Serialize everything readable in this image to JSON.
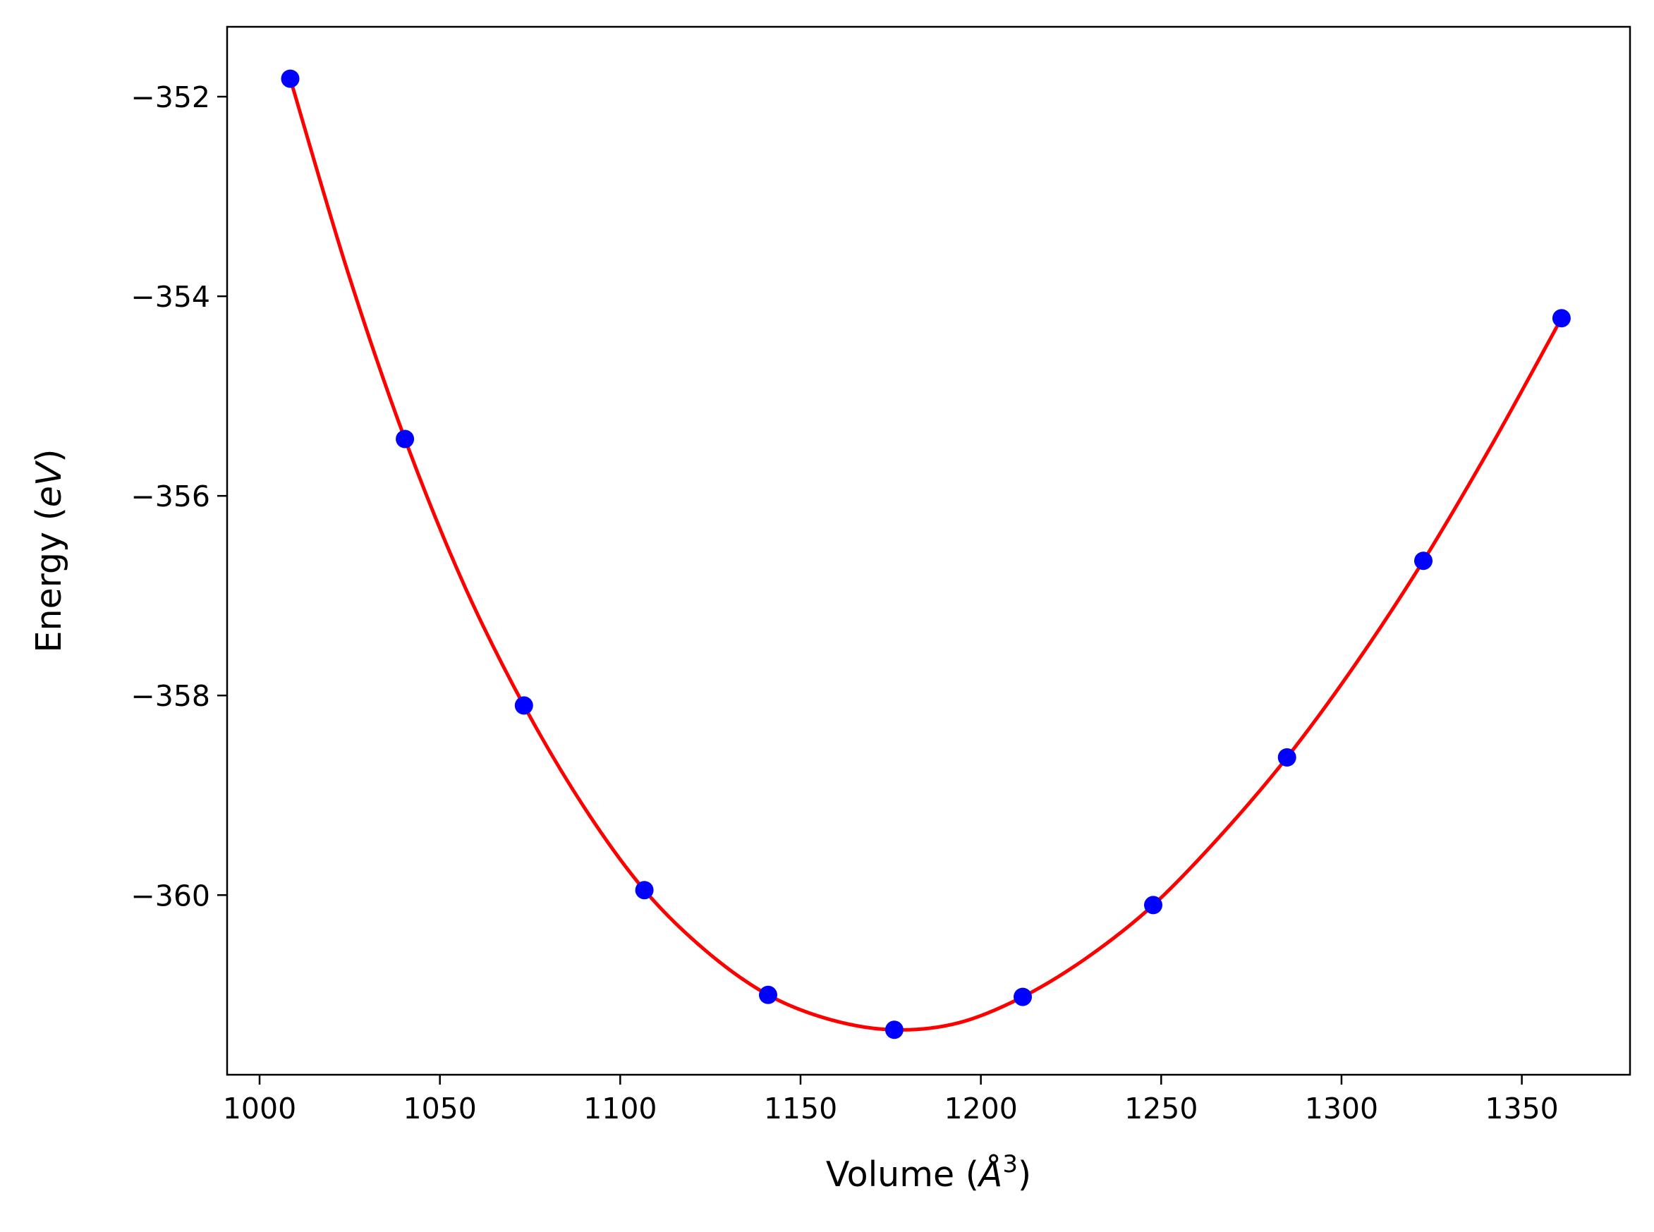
{
  "chart_data": {
    "type": "scatter",
    "title": "",
    "xlabel": {
      "prefix": "Volume (",
      "symbol": "Å",
      "sup": "3",
      "suffix": ")"
    },
    "ylabel": {
      "prefix": "Energy (",
      "italic": "eV",
      "suffix": ")"
    },
    "xlim": [
      991,
      1380
    ],
    "ylim": [
      -361.8,
      -351.3
    ],
    "xticks": [
      {
        "value": 1000,
        "label": "1000"
      },
      {
        "value": 1050,
        "label": "1050"
      },
      {
        "value": 1100,
        "label": "1100"
      },
      {
        "value": 1150,
        "label": "1150"
      },
      {
        "value": 1200,
        "label": "1200"
      },
      {
        "value": 1250,
        "label": "1250"
      },
      {
        "value": 1300,
        "label": "1300"
      },
      {
        "value": 1350,
        "label": "1350"
      }
    ],
    "yticks": [
      {
        "value": -352,
        "label": "−352"
      },
      {
        "value": -354,
        "label": "−354"
      },
      {
        "value": -356,
        "label": "−356"
      },
      {
        "value": -358,
        "label": "−358"
      },
      {
        "value": -360,
        "label": "−360"
      }
    ],
    "grid": false,
    "series": [
      {
        "kind": "points",
        "color": "#0000ff",
        "x": [
          1008.5,
          1040.3,
          1073.3,
          1106.7,
          1141.0,
          1176.0,
          1211.6,
          1247.8,
          1284.9,
          1322.7,
          1361.0
        ],
        "y": [
          -351.82,
          -355.43,
          -358.1,
          -359.95,
          -361.0,
          -361.35,
          -361.02,
          -360.1,
          -358.62,
          -356.65,
          -354.22
        ]
      },
      {
        "kind": "fit-curve",
        "color": "#ff0000",
        "x": [
          1008.5,
          1024.4,
          1040.3,
          1056.8,
          1073.3,
          1090.0,
          1106.7,
          1123.8,
          1141.0,
          1158.5,
          1176.0,
          1193.8,
          1211.6,
          1229.7,
          1247.8,
          1266.3,
          1284.9,
          1303.8,
          1322.7,
          1341.8,
          1361.0
        ],
        "y": [
          -351.82,
          -353.75,
          -355.43,
          -356.9,
          -358.1,
          -359.12,
          -359.95,
          -360.56,
          -361.0,
          -361.25,
          -361.35,
          -361.28,
          -361.02,
          -360.62,
          -360.1,
          -359.41,
          -358.62,
          -357.69,
          -356.65,
          -355.48,
          -354.22
        ]
      }
    ]
  }
}
